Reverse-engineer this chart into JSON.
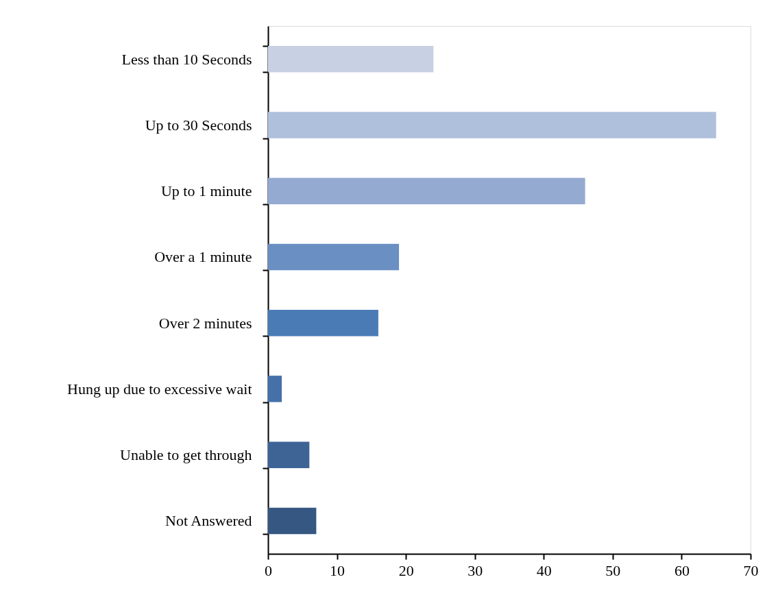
{
  "chart_data": {
    "type": "bar",
    "orientation": "horizontal",
    "categories": [
      "Less than 10 Seconds",
      "Up to 30 Seconds",
      "Up to 1 minute",
      "Over a 1 minute",
      "Over 2 minutes",
      "Hung up due to excessive wait",
      "Unable to get through",
      "Not Answered"
    ],
    "values": [
      24,
      65,
      46,
      19,
      16,
      2,
      6,
      7
    ],
    "colors": [
      "#c8d1e4",
      "#afc0dc",
      "#95aad1",
      "#6a8fc2",
      "#4a7bb5",
      "#4571a8",
      "#3e6496",
      "#365782"
    ],
    "xlim": [
      0,
      70
    ],
    "xticks": [
      0,
      10,
      20,
      30,
      40,
      50,
      60,
      70
    ],
    "grid": false
  }
}
